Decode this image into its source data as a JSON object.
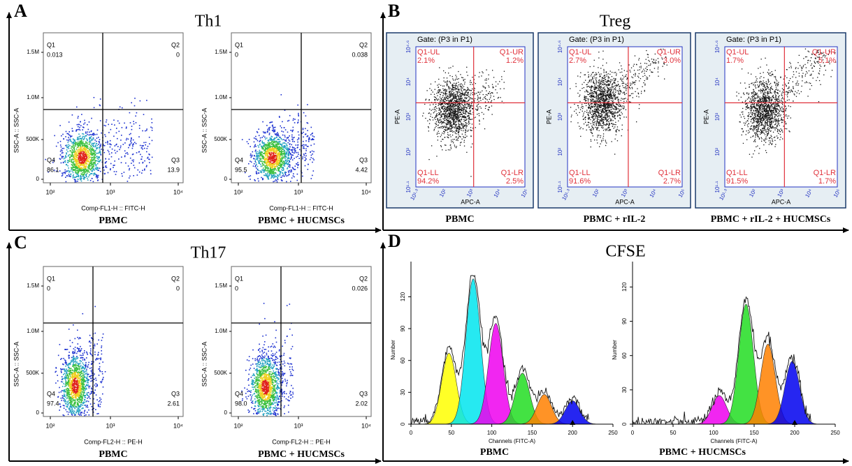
{
  "panels": [
    {
      "letter": "A",
      "title": "Th1",
      "xlabel": "Comp-FL1-H :: FITC-H",
      "ylabel": "SSC-A :: SSC-A",
      "yticks": [
        "1.5M",
        "1.0M",
        "500K",
        "0"
      ],
      "xticks": [
        "10²",
        "10³",
        "10⁴"
      ],
      "plots": [
        {
          "caption": "PBMC",
          "q1": {
            "label": "Q1",
            "value": "0.013"
          },
          "q2": {
            "label": "Q2",
            "value": "0"
          },
          "q3": {
            "label": "Q3",
            "value": "13.9"
          },
          "q4": {
            "label": "Q4",
            "value": "86.1"
          }
        },
        {
          "caption": "PBMC + HUCMSCs",
          "q1": {
            "label": "Q1",
            "value": "0"
          },
          "q2": {
            "label": "Q2",
            "value": "0.038"
          },
          "q3": {
            "label": "Q3",
            "value": "4.42"
          },
          "q4": {
            "label": "Q4",
            "value": "95.5"
          }
        }
      ]
    },
    {
      "letter": "B",
      "title": "Treg",
      "xlabel": "APC-A",
      "ylabel": "PE-A",
      "xticks": [
        "10¹·³",
        "10²",
        "10³",
        "10⁴",
        "10⁵"
      ],
      "yticks": [
        "10¹·¹",
        "10²",
        "10³",
        "10⁴",
        "10⁴·⁶"
      ],
      "plots": [
        {
          "caption": "PBMC",
          "gate": "Gate: (P3 in P1)",
          "ul": {
            "label": "Q1-UL",
            "value": "2.1%"
          },
          "ur": {
            "label": "Q1-UR",
            "value": "1.2%"
          },
          "ll": {
            "label": "Q1-LL",
            "value": "94.2%"
          },
          "lr": {
            "label": "Q1-LR",
            "value": "2.5%"
          }
        },
        {
          "caption": "PBMC + rIL-2",
          "gate": "Gate: (P3 in P1)",
          "ul": {
            "label": "Q1-UL",
            "value": "2.7%"
          },
          "ur": {
            "label": "Q1-UR",
            "value": "3.0%"
          },
          "ll": {
            "label": "Q1-LL",
            "value": "91.6%"
          },
          "lr": {
            "label": "Q1-LR",
            "value": "2.7%"
          }
        },
        {
          "caption": "PBMC + rIL-2 + HUCMSCs",
          "gate": "Gate: (P3 in P1)",
          "ul": {
            "label": "Q1-UL",
            "value": "1.7%"
          },
          "ur": {
            "label": "Q1-UR",
            "value": "5.1%"
          },
          "ll": {
            "label": "Q1-LL",
            "value": "91.5%"
          },
          "lr": {
            "label": "Q1-LR",
            "value": "1.7%"
          }
        }
      ]
    },
    {
      "letter": "C",
      "title": "Th17",
      "xlabel": "Comp-FL2-H :: PE-H",
      "ylabel": "SSC-A :: SSC-A",
      "yticks": [
        "1.5M",
        "1.0M",
        "500K",
        "0"
      ],
      "xticks": [
        "10²",
        "10³",
        "10⁴"
      ],
      "plots": [
        {
          "caption": "PBMC",
          "q1": {
            "label": "Q1",
            "value": "0"
          },
          "q2": {
            "label": "Q2",
            "value": "0"
          },
          "q3": {
            "label": "Q3",
            "value": "2.61"
          },
          "q4": {
            "label": "Q4",
            "value": "97.4"
          }
        },
        {
          "caption": "PBMC + HUCMSCs",
          "q1": {
            "label": "Q1",
            "value": "0"
          },
          "q2": {
            "label": "Q2",
            "value": "0.026"
          },
          "q3": {
            "label": "Q3",
            "value": "2.02"
          },
          "q4": {
            "label": "Q4",
            "value": "98.0"
          }
        }
      ]
    },
    {
      "letter": "D",
      "title": "CFSE",
      "xlabel": "Channels (FITC-A)",
      "ylabel": "Number",
      "xlim": [
        0,
        250
      ],
      "xticks": [
        0,
        50,
        100,
        150,
        200,
        250
      ],
      "plots": [
        {
          "caption": "PBMC",
          "ylim": [
            0,
            140
          ],
          "yticks": [
            0,
            30,
            60,
            90,
            120
          ],
          "peaks": [
            {
              "channel": 47,
              "count": 67,
              "color": "#ffff00"
            },
            {
              "channel": 77,
              "count": 137,
              "color": "#00e5ee"
            },
            {
              "channel": 105,
              "count": 95,
              "color": "#ee00ee"
            },
            {
              "channel": 138,
              "count": 48,
              "color": "#22dd22"
            },
            {
              "channel": 165,
              "count": 28,
              "color": "#ff8000"
            },
            {
              "channel": 200,
              "count": 22,
              "color": "#0000ee"
            }
          ]
        },
        {
          "caption": "PBMC + HUCMSCs",
          "ylim": [
            0,
            130
          ],
          "yticks": [
            0,
            30,
            60,
            90,
            120
          ],
          "peaks": [
            {
              "channel": 107,
              "count": 25,
              "color": "#ee00ee"
            },
            {
              "channel": 140,
              "count": 105,
              "color": "#22dd22"
            },
            {
              "channel": 167,
              "count": 70,
              "color": "#ff8000"
            },
            {
              "channel": 197,
              "count": 55,
              "color": "#0000ee"
            }
          ]
        }
      ]
    }
  ]
}
